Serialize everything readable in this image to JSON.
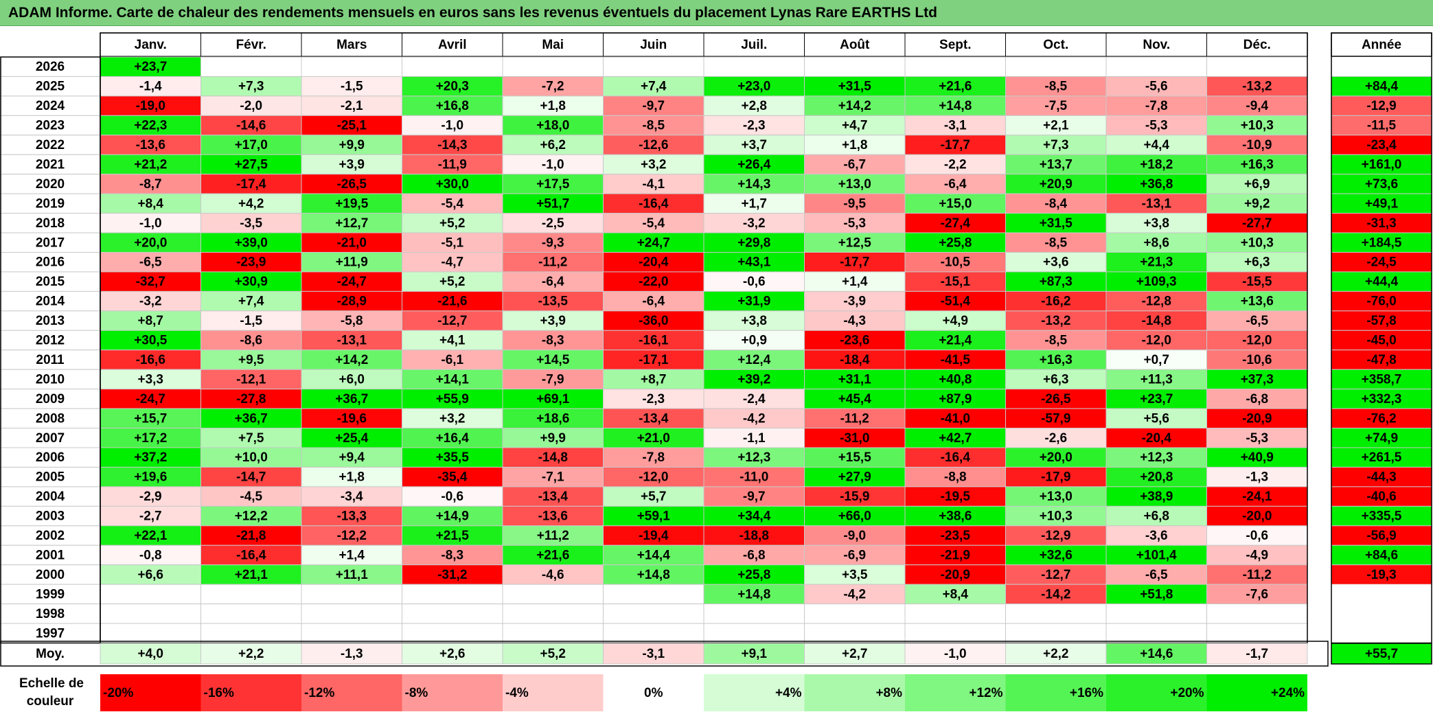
{
  "title": "ADAM Informe. Carte de chaleur des rendements mensuels en euros sans les revenus éventuels du placement Lynas Rare EARTHS Ltd",
  "colors": {
    "max_green": "#00ee00",
    "max_red": "#ff0000",
    "neutral": "#ffffff",
    "title_background": "#7fd17f"
  },
  "chart_data": {
    "type": "heatmap",
    "months": [
      "Janv.",
      "Févr.",
      "Mars",
      "Avril",
      "Mai",
      "Juin",
      "Juil.",
      "Août",
      "Sept.",
      "Oct.",
      "Nov.",
      "Déc."
    ],
    "year_header": "Année",
    "color_range": [
      -20,
      24
    ],
    "rows": [
      {
        "year": "2026",
        "values": [
          "+23,7",
          "",
          "",
          "",
          "",
          "",
          "",
          "",
          "",
          "",
          "",
          ""
        ],
        "annual": ""
      },
      {
        "year": "2025",
        "values": [
          "-1,4",
          "+7,3",
          "-1,5",
          "+20,3",
          "-7,2",
          "+7,4",
          "+23,0",
          "+31,5",
          "+21,6",
          "-8,5",
          "-5,6",
          "-13,2"
        ],
        "annual": "+84,4"
      },
      {
        "year": "2024",
        "values": [
          "-19,0",
          "-2,0",
          "-2,1",
          "+16,8",
          "+1,8",
          "-9,7",
          "+2,8",
          "+14,2",
          "+14,8",
          "-7,5",
          "-7,8",
          "-9,4"
        ],
        "annual": "-12,9"
      },
      {
        "year": "2023",
        "values": [
          "+22,3",
          "-14,6",
          "-25,1",
          "-1,0",
          "+18,0",
          "-8,5",
          "-2,3",
          "+4,7",
          "-3,1",
          "+2,1",
          "-5,3",
          "+10,3"
        ],
        "annual": "-11,5"
      },
      {
        "year": "2022",
        "values": [
          "-13,6",
          "+17,0",
          "+9,9",
          "-14,3",
          "+6,2",
          "-12,6",
          "+3,7",
          "+1,8",
          "-17,7",
          "+7,3",
          "+4,4",
          "-10,9"
        ],
        "annual": "-23,4"
      },
      {
        "year": "2021",
        "values": [
          "+21,2",
          "+27,5",
          "+3,9",
          "-11,9",
          "-1,0",
          "+3,2",
          "+26,4",
          "-6,7",
          "-2,2",
          "+13,7",
          "+18,2",
          "+16,3"
        ],
        "annual": "+161,0"
      },
      {
        "year": "2020",
        "values": [
          "-8,7",
          "-17,4",
          "-26,5",
          "+30,0",
          "+17,5",
          "-4,1",
          "+14,3",
          "+13,0",
          "-6,4",
          "+20,9",
          "+36,8",
          "+6,9"
        ],
        "annual": "+73,6"
      },
      {
        "year": "2019",
        "values": [
          "+8,4",
          "+4,2",
          "+19,5",
          "-5,4",
          "+51,7",
          "-16,4",
          "+1,7",
          "-9,5",
          "+15,0",
          "-8,4",
          "-13,1",
          "+9,2"
        ],
        "annual": "+49,1"
      },
      {
        "year": "2018",
        "values": [
          "-1,0",
          "-3,5",
          "+12,7",
          "+5,2",
          "-2,5",
          "-5,4",
          "-3,2",
          "-5,3",
          "-27,4",
          "+31,5",
          "+3,8",
          "-27,7"
        ],
        "annual": "-31,3"
      },
      {
        "year": "2017",
        "values": [
          "+20,0",
          "+39,0",
          "-21,0",
          "-5,1",
          "-9,3",
          "+24,7",
          "+29,8",
          "+12,5",
          "+25,8",
          "-8,5",
          "+8,6",
          "+10,3"
        ],
        "annual": "+184,5"
      },
      {
        "year": "2016",
        "values": [
          "-6,5",
          "-23,9",
          "+11,9",
          "-4,7",
          "-11,2",
          "-20,4",
          "+43,1",
          "-17,7",
          "-10,5",
          "+3,6",
          "+21,3",
          "+6,3"
        ],
        "annual": "-24,5"
      },
      {
        "year": "2015",
        "values": [
          "-32,7",
          "+30,9",
          "-24,7",
          "+5,2",
          "-6,4",
          "-22,0",
          "-0,6",
          "+1,4",
          "-15,1",
          "+87,3",
          "+109,3",
          "-15,5"
        ],
        "annual": "+44,4"
      },
      {
        "year": "2014",
        "values": [
          "-3,2",
          "+7,4",
          "-28,9",
          "-21,6",
          "-13,5",
          "-6,4",
          "+31,9",
          "-3,9",
          "-51,4",
          "-16,2",
          "-12,8",
          "+13,6"
        ],
        "annual": "-76,0"
      },
      {
        "year": "2013",
        "values": [
          "+8,7",
          "-1,5",
          "-5,8",
          "-12,7",
          "+3,9",
          "-36,0",
          "+3,8",
          "-4,3",
          "+4,9",
          "-13,2",
          "-14,8",
          "-6,5"
        ],
        "annual": "-57,8"
      },
      {
        "year": "2012",
        "values": [
          "+30,5",
          "-8,6",
          "-13,1",
          "+4,1",
          "-8,3",
          "-16,1",
          "+0,9",
          "-23,6",
          "+21,4",
          "-8,5",
          "-12,0",
          "-12,0"
        ],
        "annual": "-45,0"
      },
      {
        "year": "2011",
        "values": [
          "-16,6",
          "+9,5",
          "+14,2",
          "-6,1",
          "+14,5",
          "-17,1",
          "+12,4",
          "-18,4",
          "-41,5",
          "+16,3",
          "+0,7",
          "-10,6"
        ],
        "annual": "-47,8"
      },
      {
        "year": "2010",
        "values": [
          "+3,3",
          "-12,1",
          "+6,0",
          "+14,1",
          "-7,9",
          "+8,7",
          "+39,2",
          "+31,1",
          "+40,8",
          "+6,3",
          "+11,3",
          "+37,3"
        ],
        "annual": "+358,7"
      },
      {
        "year": "2009",
        "values": [
          "-24,7",
          "-27,8",
          "+36,7",
          "+55,9",
          "+69,1",
          "-2,3",
          "-2,4",
          "+45,4",
          "+87,9",
          "-26,5",
          "+23,7",
          "-6,8"
        ],
        "annual": "+332,3"
      },
      {
        "year": "2008",
        "values": [
          "+15,7",
          "+36,7",
          "-19,6",
          "+3,2",
          "+18,6",
          "-13,4",
          "-4,2",
          "-11,2",
          "-41,0",
          "-57,9",
          "+5,6",
          "-20,9"
        ],
        "annual": "-76,2"
      },
      {
        "year": "2007",
        "values": [
          "+17,2",
          "+7,5",
          "+25,4",
          "+16,4",
          "+9,9",
          "+21,0",
          "-1,1",
          "-31,0",
          "+42,7",
          "-2,6",
          "-20,4",
          "-5,3"
        ],
        "annual": "+74,9"
      },
      {
        "year": "2006",
        "values": [
          "+37,2",
          "+10,0",
          "+9,4",
          "+35,5",
          "-14,8",
          "-7,8",
          "+12,3",
          "+15,5",
          "-16,4",
          "+20,0",
          "+12,3",
          "+40,9"
        ],
        "annual": "+261,5"
      },
      {
        "year": "2005",
        "values": [
          "+19,6",
          "-14,7",
          "+1,8",
          "-35,4",
          "-7,1",
          "-12,0",
          "-11,0",
          "+27,9",
          "-8,8",
          "-17,9",
          "+20,8",
          "-1,3"
        ],
        "annual": "-44,3"
      },
      {
        "year": "2004",
        "values": [
          "-2,9",
          "-4,5",
          "-3,4",
          "-0,6",
          "-13,4",
          "+5,7",
          "-9,7",
          "-15,9",
          "-19,5",
          "+13,0",
          "+38,9",
          "-24,1"
        ],
        "annual": "-40,6"
      },
      {
        "year": "2003",
        "values": [
          "-2,7",
          "+12,2",
          "-13,3",
          "+14,9",
          "-13,6",
          "+59,1",
          "+34,4",
          "+66,0",
          "+38,6",
          "+10,3",
          "+6,8",
          "-20,0"
        ],
        "annual": "+335,5"
      },
      {
        "year": "2002",
        "values": [
          "+22,1",
          "-21,8",
          "-12,2",
          "+21,5",
          "+11,2",
          "-19,4",
          "-18,8",
          "-9,0",
          "-23,5",
          "-12,9",
          "-3,6",
          "-0,6"
        ],
        "annual": "-56,9"
      },
      {
        "year": "2001",
        "values": [
          "-0,8",
          "-16,4",
          "+1,4",
          "-8,3",
          "+21,6",
          "+14,4",
          "-6,8",
          "-6,9",
          "-21,9",
          "+32,6",
          "+101,4",
          "-4,9"
        ],
        "annual": "+84,6"
      },
      {
        "year": "2000",
        "values": [
          "+6,6",
          "+21,1",
          "+11,1",
          "-31,2",
          "-4,6",
          "+14,8",
          "+25,8",
          "+3,5",
          "-20,9",
          "-12,7",
          "-6,5",
          "-11,2"
        ],
        "annual": "-19,3"
      },
      {
        "year": "1999",
        "values": [
          "",
          "",
          "",
          "",
          "",
          "",
          "+14,8",
          "-4,2",
          "+8,4",
          "-14,2",
          "+51,8",
          "-7,6"
        ],
        "annual": ""
      },
      {
        "year": "1998",
        "values": [
          "",
          "",
          "",
          "",
          "",
          "",
          "",
          "",
          "",
          "",
          "",
          ""
        ],
        "annual": ""
      },
      {
        "year": "1997",
        "values": [
          "",
          "",
          "",
          "",
          "",
          "",
          "",
          "",
          "",
          "",
          "",
          ""
        ],
        "annual": ""
      }
    ],
    "average": {
      "label": "Moy.",
      "values": [
        "+4,0",
        "+2,2",
        "-1,3",
        "+2,6",
        "+5,2",
        "-3,1",
        "+9,1",
        "+2,7",
        "-1,0",
        "+2,2",
        "+14,6",
        "-1,7"
      ],
      "annual": "+55,7"
    },
    "scale": {
      "label_line1": "Echelle de",
      "label_line2": "couleur",
      "items": [
        {
          "label": "-20%",
          "value": -20
        },
        {
          "label": "-16%",
          "value": -16
        },
        {
          "label": "-12%",
          "value": -12
        },
        {
          "label": "-8%",
          "value": -8
        },
        {
          "label": "-4%",
          "value": -4
        },
        {
          "label": "0%",
          "value": 0
        },
        {
          "label": "+4%",
          "value": 4
        },
        {
          "label": "+8%",
          "value": 8
        },
        {
          "label": "+12%",
          "value": 12
        },
        {
          "label": "+16%",
          "value": 16
        },
        {
          "label": "+20%",
          "value": 20
        },
        {
          "label": "+24%",
          "value": 24
        }
      ]
    }
  }
}
